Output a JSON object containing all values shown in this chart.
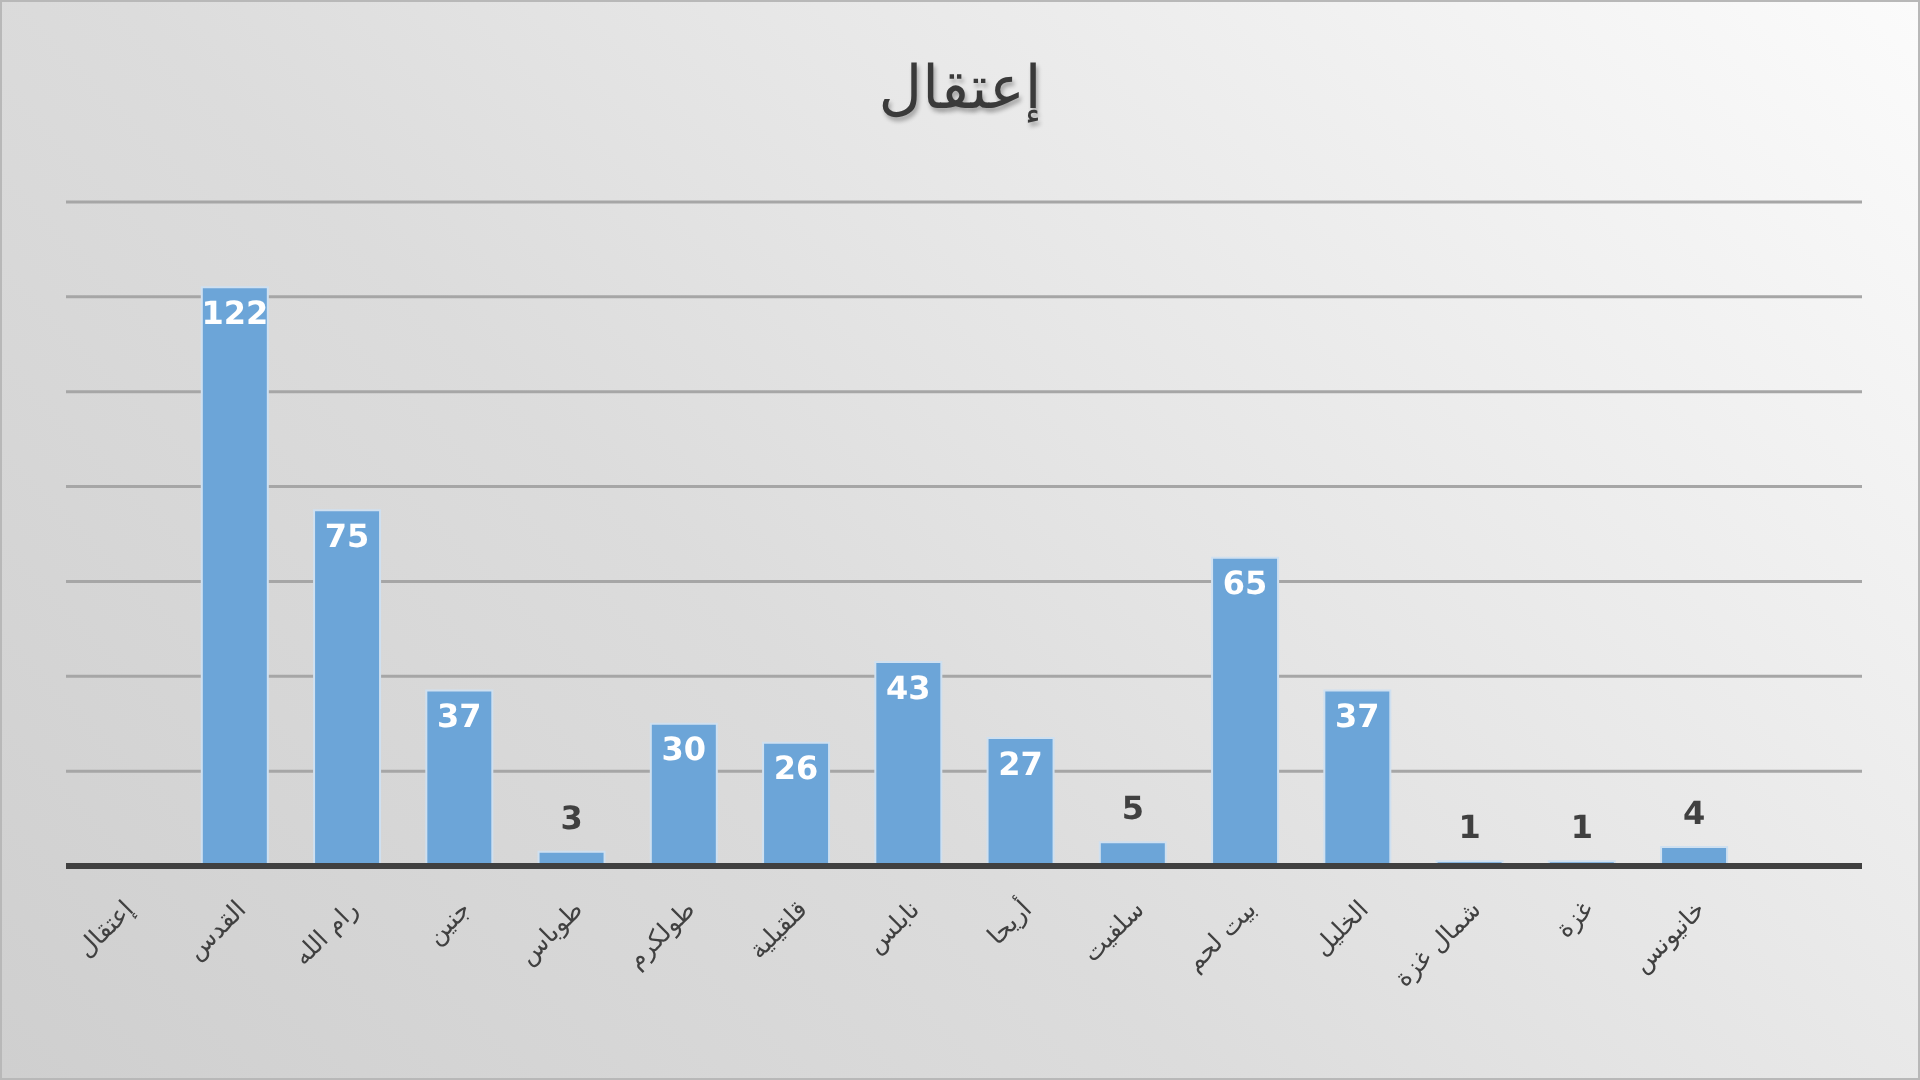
{
  "chart_data": {
    "type": "bar",
    "title": "إعتقال",
    "categories": [
      "إعتقال",
      "القدس",
      "رام الله",
      "جنين",
      "طوباس",
      "طولكرم",
      "قلقيلية",
      "نابلس",
      "أريحا",
      "سلفيت",
      "بيت لحم",
      "الخليل",
      "شمال غزة",
      "غزة",
      "خانيونس",
      null
    ],
    "values": [
      null,
      122,
      75,
      37,
      3,
      30,
      26,
      43,
      27,
      5,
      65,
      37,
      1,
      1,
      4,
      null
    ],
    "color": "#6ca5d8",
    "ylim": [
      0,
      140
    ],
    "yticks": [
      {
        "value": 0,
        "label": null
      },
      {
        "value": 20,
        "label": null
      },
      {
        "value": 40,
        "label": null
      },
      {
        "value": 60,
        "label": null
      },
      {
        "value": 80,
        "label": null
      },
      {
        "value": 100,
        "label": null
      },
      {
        "value": 120,
        "label": null
      },
      {
        "value": 140,
        "label": null
      }
    ],
    "grid": "y",
    "tick_labels": "x",
    "data_labels": true
  }
}
